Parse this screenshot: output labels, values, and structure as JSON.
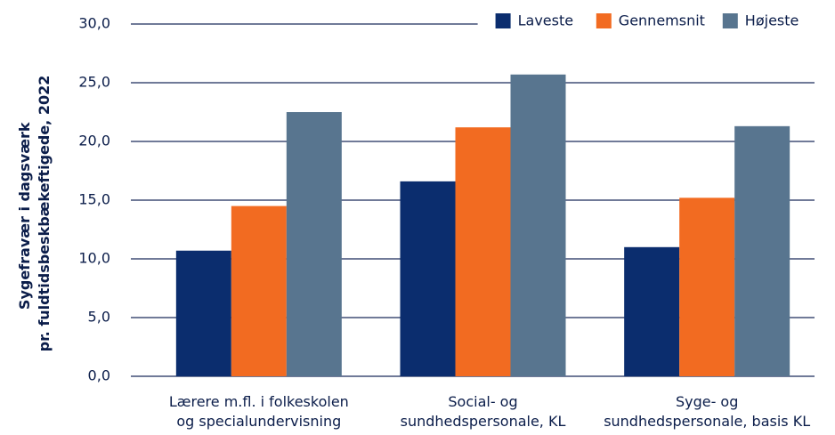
{
  "chart_data": {
    "type": "bar",
    "ylabel": [
      "Sygefravær i dagsværk",
      "pr. fuldtidsbeskbækeftigede, 2022"
    ],
    "categories": [
      [
        "Lærere m.fl. i folkeskolen",
        "og specialundervisning"
      ],
      [
        "Social- og",
        "sundhedspersonale, KL"
      ],
      [
        "Syge- og",
        "sundhedspersonale, basis KL"
      ]
    ],
    "series": [
      {
        "name": "Laveste",
        "color": "#0b2d6e",
        "values": [
          10.7,
          16.6,
          11.0
        ]
      },
      {
        "name": "Gennemsnit",
        "color": "#f26b21",
        "values": [
          14.5,
          21.2,
          15.2
        ]
      },
      {
        "name": "Højeste",
        "color": "#58758f",
        "values": [
          22.5,
          25.7,
          21.3
        ]
      }
    ],
    "ylim": [
      0,
      30
    ],
    "yticks": [
      {
        "value": 0,
        "label": "0,0"
      },
      {
        "value": 5,
        "label": "5,0"
      },
      {
        "value": 10,
        "label": "10,0"
      },
      {
        "value": 15,
        "label": "15,0"
      },
      {
        "value": 20,
        "label": "20,0"
      },
      {
        "value": 25,
        "label": "25,0"
      },
      {
        "value": 30,
        "label": "30,0"
      }
    ],
    "grid": true,
    "legend": "upper right"
  }
}
